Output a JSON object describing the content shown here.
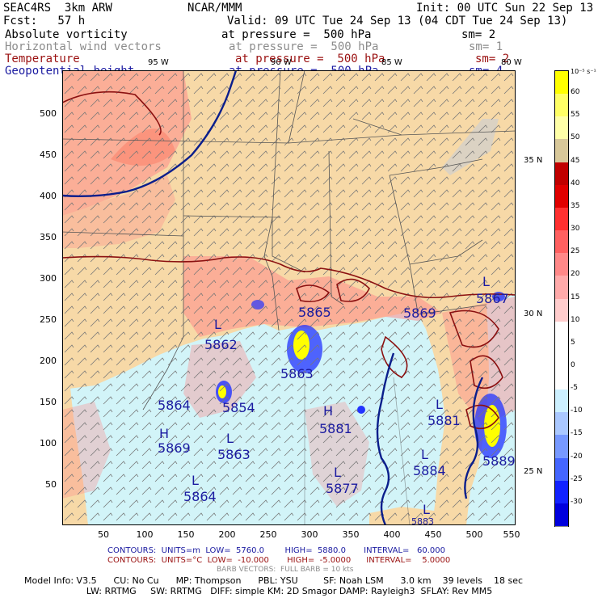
{
  "header": {
    "model": "SEAC4RS  3km ARW",
    "fcst": "Fcst:   57 h",
    "org": "NCAR/MMM",
    "init": "Init: 00 UTC Sun 22 Sep 13",
    "valid": "Valid: 09 UTC Tue 24 Sep 13 (04 CDT Tue 24 Sep 13)"
  },
  "fields": [
    {
      "name": "Absolute vorticity",
      "level": "at pressure =  500 hPa",
      "sm": "sm= 2",
      "color": "#000000"
    },
    {
      "name": "Horizontal wind vectors",
      "level": "at pressure =  500 hPa",
      "sm": "sm= 1",
      "color": "#8c8c8c"
    },
    {
      "name": "Temperature",
      "level": "at pressure =  500 hPa",
      "sm": "sm= 2",
      "color": "#9a1010"
    },
    {
      "name": "Geopotential height",
      "level": "at pressure =  500 hPa",
      "sm": "sm= 4",
      "color": "#1a1aa0"
    }
  ],
  "axes": {
    "y_ticks": [
      "500",
      "450",
      "400",
      "350",
      "300",
      "250",
      "200",
      "150",
      "100",
      "50"
    ],
    "x_ticks": [
      "50",
      "100",
      "150",
      "200",
      "250",
      "300",
      "350",
      "400",
      "450",
      "500",
      "550"
    ],
    "lon_labels": [
      "95 W",
      "90 W",
      "85 W",
      "80 W"
    ],
    "lat_labels": [
      "35 N",
      "30 N",
      "25 N"
    ]
  },
  "map_labels": [
    {
      "text": "L",
      "color": "#1a1aa0"
    },
    {
      "text": "5862",
      "color": "#1a1aa0"
    },
    {
      "text": "5865",
      "color": "#1a1aa0"
    },
    {
      "text": "5863",
      "color": "#1a1aa0"
    },
    {
      "text": "5869",
      "color": "#1a1aa0"
    },
    {
      "text": "L",
      "color": "#1a1aa0"
    },
    {
      "text": "5867",
      "color": "#1a1aa0"
    },
    {
      "text": "5864",
      "color": "#1a1aa0"
    },
    {
      "text": "5854",
      "color": "#1a1aa0"
    },
    {
      "text": "H",
      "color": "#1a1aa0"
    },
    {
      "text": "5881",
      "color": "#1a1aa0"
    },
    {
      "text": "L",
      "color": "#1a1aa0"
    },
    {
      "text": "5881",
      "color": "#1a1aa0"
    },
    {
      "text": "H",
      "color": "#1a1aa0"
    },
    {
      "text": "5869",
      "color": "#1a1aa0"
    },
    {
      "text": "L",
      "color": "#1a1aa0"
    },
    {
      "text": "5863",
      "color": "#1a1aa0"
    },
    {
      "text": "L",
      "color": "#1a1aa0"
    },
    {
      "text": "5884",
      "color": "#1a1aa0"
    },
    {
      "text": "5889",
      "color": "#1a1aa0"
    },
    {
      "text": "L",
      "color": "#1a1aa0"
    },
    {
      "text": "5877",
      "color": "#1a1aa0"
    },
    {
      "text": "L",
      "color": "#1a1aa0"
    },
    {
      "text": "5864",
      "color": "#1a1aa0"
    },
    {
      "text": "L",
      "color": "#1a1aa0"
    },
    {
      "text": "5883",
      "color": "#1a1aa0"
    }
  ],
  "colorbar": {
    "unit": "10⁻⁵ s⁻¹",
    "labels": [
      "60",
      "55",
      "50",
      "45",
      "40",
      "35",
      "30",
      "25",
      "20",
      "15",
      "10",
      "5",
      "0",
      "-5",
      "-10",
      "-15",
      "-20",
      "-25",
      "-30"
    ],
    "colors": [
      "#ffff00",
      "#ffff66",
      "#ffffa8",
      "#d8c89a",
      "#c00000",
      "#e00000",
      "#ff3030",
      "#ff6060",
      "#ff8888",
      "#ffaaaa",
      "#ffcccc",
      "#ffffff",
      "#ffffff",
      "#ffffff",
      "#ccf0ff",
      "#aac8ff",
      "#7799ff",
      "#4466ff",
      "#1122ff",
      "#0000dd"
    ]
  },
  "footer": {
    "contours1": "CONTOURS:  UNITS=m  LOW=  5760.0        HIGH=  5880.0       INTERVAL=   60.000",
    "contours2": "CONTOURS:  UNITS=°C  LOW=  -10.000       HIGH=  -5.0000      INTERVAL=    5.0000",
    "barbs": "BARB VECTORS:  FULL BARB = 10 kts",
    "model_info1": "Model Info: V3.5      CU: No Cu      MP: Thompson      PBL: YSU         SF: Noah LSM      3.0 km    39 levels    18 sec",
    "model_info2": "                      LW: RRTMG     SW: RRTMG   DIFF: simple KM: 2D Smagor DAMP: Rayleigh3  SFLAY: Rev MM5"
  },
  "colors": {
    "land": "#f7d9a7",
    "water": "#d2f4f8",
    "vort_pos": "#ff8a8a",
    "temp_contour": "#8b1010",
    "height_contour": "#0a1e8c"
  }
}
